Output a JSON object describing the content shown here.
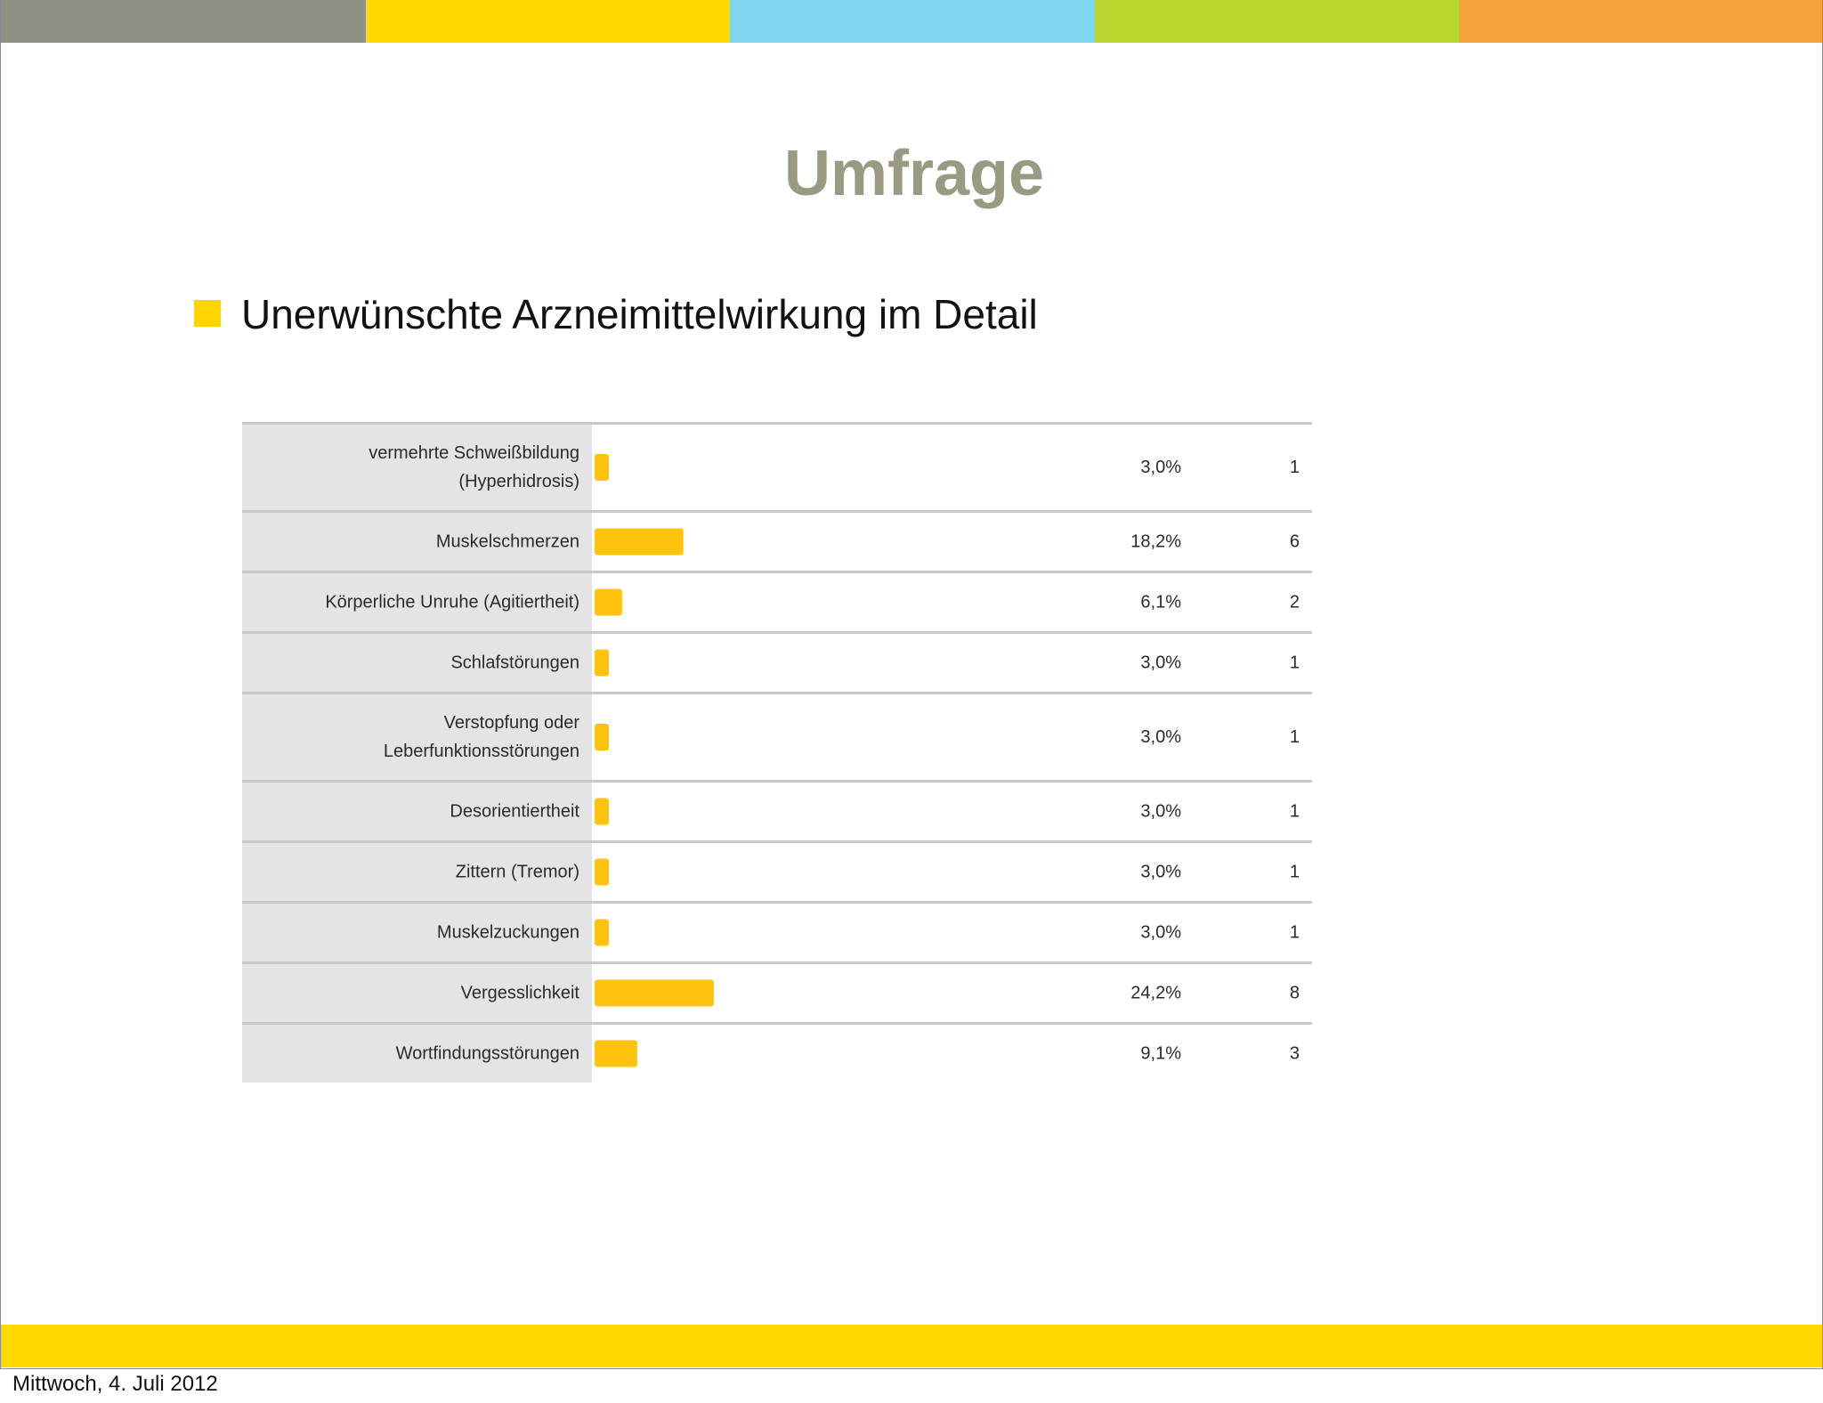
{
  "slide": {
    "title": "Umfrage",
    "bullet": "Unerwünschte Arzneimittelwirkung im Detail",
    "footer_date": "Mittwoch, 4. Juli 2012"
  },
  "colors": {
    "title": "#9a9a82",
    "bar": "#ffc20e",
    "bullet_square": "#ffd500",
    "bottom_band": "#ffd900",
    "label_column": "#e4e4e6",
    "row_divider": "#c9c9cb",
    "top_band": [
      "#8f9185",
      "#ffd900",
      "#7fd6f0",
      "#bcd630",
      "#f7a23b"
    ]
  },
  "chart_data": {
    "type": "bar",
    "orientation": "horizontal",
    "categories": [
      [
        "vermehrte Schweißbildung",
        "(Hyperhidrosis)"
      ],
      [
        "Muskelschmerzen"
      ],
      [
        "Körperliche Unruhe (Agitiertheit)"
      ],
      [
        "Schlafstörungen"
      ],
      [
        "Verstopfung oder",
        "Leberfunktionsstörungen"
      ],
      [
        "Desorientiertheit"
      ],
      [
        "Zittern (Tremor)"
      ],
      [
        "Muskelzuckungen"
      ],
      [
        "Vergesslichkeit"
      ],
      [
        "Wortfindungsstörungen"
      ]
    ],
    "values": [
      3.0,
      18.2,
      6.1,
      3.0,
      3.0,
      3.0,
      3.0,
      3.0,
      24.2,
      9.1
    ],
    "percent_labels": [
      "3,0%",
      "18,2%",
      "6,1%",
      "3,0%",
      "3,0%",
      "3,0%",
      "3,0%",
      "3,0%",
      "24,2%",
      "9,1%"
    ],
    "counts": [
      "1",
      "6",
      "2",
      "1",
      "1",
      "1",
      "1",
      "1",
      "8",
      "3"
    ],
    "title": "",
    "xlabel": "",
    "ylabel": "",
    "xlim": [
      0,
      100
    ],
    "grid": false,
    "legend": "none"
  }
}
